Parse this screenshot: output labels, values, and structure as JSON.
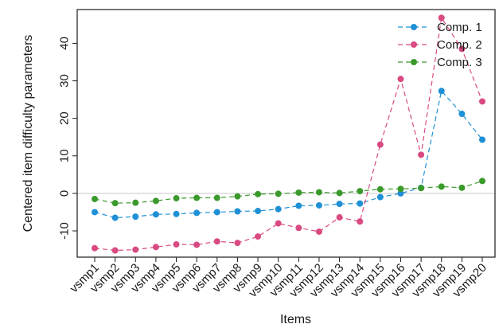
{
  "chart_data": {
    "type": "line",
    "title": "",
    "xlabel": "Items",
    "ylabel": "Centered item difficulty parameters",
    "categories": [
      "vsmp1",
      "vsmp2",
      "vsmp3",
      "vsmp4",
      "vsmp5",
      "vsmp6",
      "vsmp7",
      "vsmp8",
      "vsmp9",
      "vsmp10",
      "vsmp11",
      "vsmp12",
      "vsmp13",
      "vsmp14",
      "vsmp15",
      "vsmp16",
      "vsmp17",
      "vsmp18",
      "vsmp19",
      "vsmp20"
    ],
    "ylim": [
      -17,
      49
    ],
    "yticks": [
      -10,
      0,
      10,
      20,
      30,
      40
    ],
    "reference_line": 0,
    "grid": false,
    "legend_position": "top-right",
    "series": [
      {
        "name": "Comp. 1",
        "color": "#1E90D6",
        "values": [
          -5.0,
          -6.5,
          -6.2,
          -5.6,
          -5.5,
          -5.2,
          -5.0,
          -4.8,
          -4.7,
          -4.2,
          -3.3,
          -3.2,
          -2.8,
          -2.7,
          -1.0,
          0.0,
          1.5,
          27.3,
          21.2,
          14.3
        ]
      },
      {
        "name": "Comp. 2",
        "color": "#D94A82",
        "values": [
          -14.6,
          -15.2,
          -15.0,
          -14.3,
          -13.6,
          -13.7,
          -12.8,
          -13.2,
          -11.5,
          -8.0,
          -9.2,
          -10.2,
          -6.4,
          -7.5,
          13.0,
          30.5,
          10.3,
          46.8,
          38.5,
          24.5
        ]
      },
      {
        "name": "Comp. 3",
        "color": "#3A9A2B",
        "values": [
          -1.5,
          -2.6,
          -2.5,
          -2.0,
          -1.3,
          -1.2,
          -1.2,
          -0.8,
          -0.2,
          -0.1,
          0.2,
          0.3,
          0.1,
          0.6,
          1.1,
          1.2,
          1.4,
          1.8,
          1.5,
          3.3
        ]
      }
    ]
  }
}
